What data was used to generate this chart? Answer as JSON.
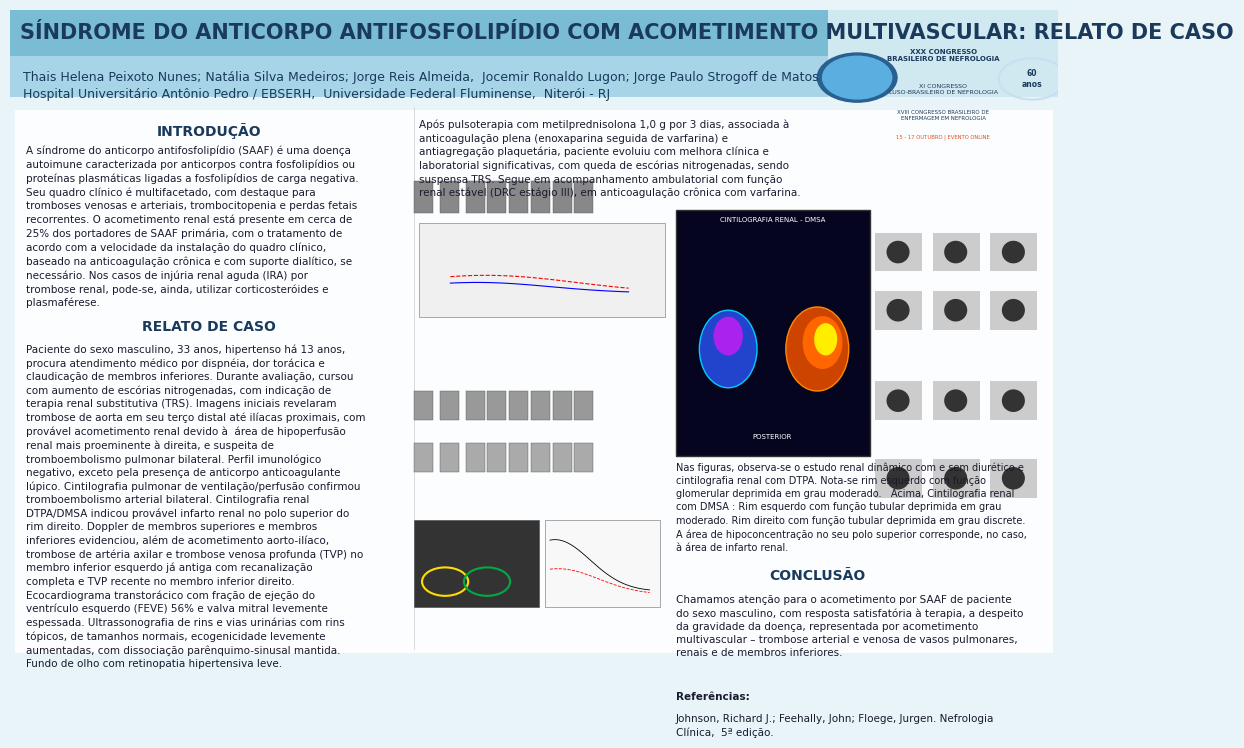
{
  "bg_color": "#e8f4f8",
  "header_bg": "#5ba3c9",
  "header_title": "SÍNDROME DO ANTICORPO ANTIFOSFOLIPÍDIO COM ACOMETIMENTO MULTIVASCULAR: RELATO DE CASO",
  "header_title_color": "#1a3a5c",
  "header_title_fontsize": 15,
  "authors": "Thais Helena Peixoto Nunes; Natália Silva Medeiros; Jorge Reis Almeida,  Jocemir Ronaldo Lugon; Jorge Paulo Strogoff de Matos",
  "institution": "Hospital Universitário Antônio Pedro / EBSERH,  Universidade Federal Fluminense,  Niterói - RJ",
  "authors_fontsize": 9,
  "institution_fontsize": 9,
  "section_color": "#1a3a5c",
  "body_color": "#1a1a2e",
  "intro_title": "INTRODUÇÃO",
  "intro_text": "A síndrome do anticorpo antifosfolipídio (SAAF) é uma doença\nautoimune caracterizada por anticorpos contra fosfolipídios ou\nproteínas plasmáticas ligadas a fosfolipídios de carga negativa.\nSeu quadro clínico é multifacetado, com destaque para\ntromboses venosas e arteriais, trombocitopenia e perdas fetais\nrecorrentes. O acometimento renal está presente em cerca de\n25% dos portadores de SAAF primária, com o tratamento de\nacordo com a velocidade da instalação do quadro clínico,\nbaseado na anticoagulação crônica e com suporte dialítico, se\nnecessário. Nos casos de injúria renal aguda (IRA) por\ntrombose renal, pode-se, ainda, utilizar corticosteróides e\nplasmaférese.",
  "case_title": "RELATO DE CASO",
  "case_text": "Paciente do sexo masculino, 33 anos, hipertenso há 13 anos,\nprocura atendimento médico por dispnéia, dor torácica e\nclaudicação de membros inferiores. Durante avaliação, cursou\ncom aumento de escórias nitrogenadas, com indicação de\nterapia renal substitutiva (TRS). Imagens iniciais revelaram\ntrombose de aorta em seu terço distal até ilíacas proximais, com\nprovável acometimento renal devido à  área de hipoperfusão\nrenal mais proeminente à direita, e suspeita de\ntromboembolismo pulmonar bilateral. Perfil imunológico\nnegativo, exceto pela presença de anticorpo anticoagulante\nlúpico. Cintilografia pulmonar de ventilação/perfusão confirmou\ntromboembolismo arterial bilateral. Cintilografia renal\nDTPA/DMSA indicou provável infarto renal no polo superior do\nrim direito. Doppler de membros superiores e membros\ninferiores evidenciou, além de acometimento aorto-ilíaco,\ntrombose de artéria axilar e trombose venosa profunda (TVP) no\nmembro inferior esquerdo já antiga com recanalização\ncompleta e TVP recente no membro inferior direito.\nEcocardiograma transtorácico com fração de ejeção do\nventrículo esquerdo (FEVE) 56% e valva mitral levemente\nespessada. Ultrassonografia de rins e vias urinárias com rins\ntópicos, de tamanhos normais, ecogenicidade levemente\naumentadas, com dissociação parênquimo-sinusal mantida.\nFundo de olho com retinopatia hipertensiva leve.",
  "results_text": "Após pulsoterapia com metilprednisolona 1,0 g por 3 dias, associada à\nanticoagulação plena (enoxaparina seguida de varfarina) e\nantiagregação plaquetária, paciente evoluiu com melhora clínica e\nlaboratorial significativas, com queda de escórias nitrogenadas, sendo\nsuspensa TRS. Segue em acompanhamento ambulatorial com função\nrenal estável (DRC estágio III), em anticoagulação crônica com varfarina.",
  "dmsa_caption": "Nas figuras, observa-se o estudo renal dinâmico com e sem diurético e\ncintilografia renal com DTPA. Nota-se rim esquerdo com função\nglomerular deprimida em grau moderado.   Acima, Cintilografia renal\ncom DMSA : Rim esquerdo com função tubular deprimida em grau\nmoderado. Rim direito com função tubular deprimida em grau discrete.\nA área de hipoconcentração no seu polo superior corresponde, no caso,\nà área de infarto renal.",
  "conclusion_title": "CONCLUSÃO",
  "conclusion_text": "Chamamos atenção para o acometimento por SAAF de paciente\ndo sexo masculino, com resposta satisfatória à terapia, a despeito\nda gravidade da doença, representada por acometimento\nmultivascular – trombose arterial e venosa de vasos pulmonares,\nrenais e de membros inferiores.",
  "references_title": "Referências:",
  "references_text": "Johnson, Richard J.; Feehally, John; Floege, Jurgen. Nefrologia\nClínica,  5ª edição.",
  "text_fontsize": 7.5,
  "title_fontsize": 10,
  "white_panel_color": "#ffffff",
  "panel_alpha": 0.85
}
